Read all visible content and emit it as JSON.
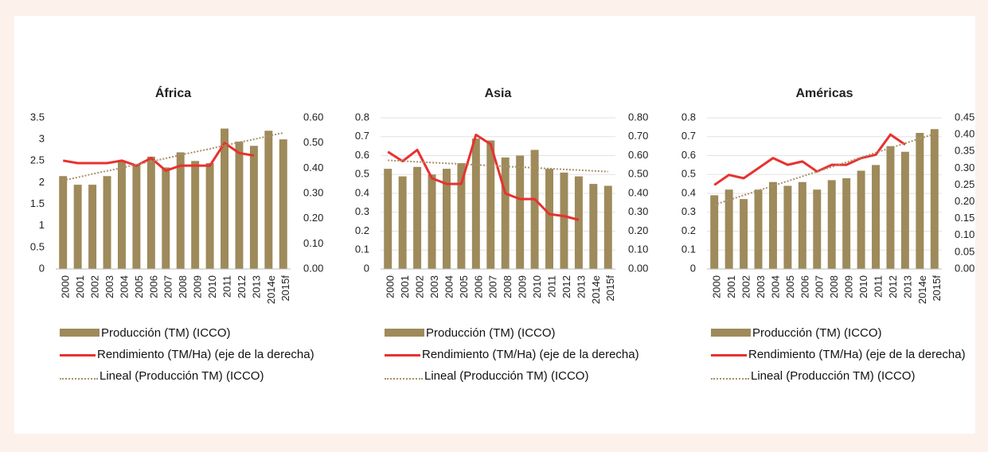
{
  "chart_data": [
    {
      "type": "bar",
      "title": "África",
      "categories": [
        "2000",
        "2001",
        "2002",
        "2003",
        "2004",
        "2005",
        "2006",
        "2007",
        "2008",
        "2009",
        "2010",
        "2011",
        "2012",
        "2013",
        "2014e",
        "2015f"
      ],
      "series": [
        {
          "name": "Producción (TM) (ICCO)",
          "type": "bar",
          "color": "#9e8a5a",
          "values": [
            2.15,
            1.95,
            1.95,
            2.15,
            2.5,
            2.4,
            2.6,
            2.35,
            2.7,
            2.5,
            2.45,
            3.25,
            2.95,
            2.85,
            3.2,
            3.0
          ]
        },
        {
          "name": "Rendimiento (TM/Ha) (eje de la derecha)",
          "type": "line",
          "axis": "y2",
          "color": "#e8312f",
          "values": [
            0.43,
            0.42,
            0.42,
            0.42,
            0.43,
            0.41,
            0.44,
            0.39,
            0.41,
            0.41,
            0.41,
            0.5,
            0.46,
            0.45,
            null,
            null
          ]
        },
        {
          "name": "Lineal (Producción TM) (ICCO)",
          "type": "line",
          "style": "dotted",
          "color": "#a8916a",
          "values": [
            2.05,
            2.12,
            2.2,
            2.27,
            2.34,
            2.42,
            2.49,
            2.56,
            2.64,
            2.71,
            2.78,
            2.86,
            2.93,
            3.0,
            3.08,
            3.15
          ]
        }
      ],
      "ylim": [
        0,
        3.5
      ],
      "yticks": [
        0,
        0.5,
        1,
        1.5,
        2,
        2.5,
        3,
        3.5
      ],
      "y2lim": [
        0,
        0.6
      ],
      "y2ticks": [
        {
          "value": 0,
          "label": "0.00"
        },
        {
          "value": 0.1,
          "label": "0.10"
        },
        {
          "value": 0.2,
          "label": "0.20"
        },
        {
          "value": 0.3,
          "label": "0.30"
        },
        {
          "value": 0.4,
          "label": "0.40"
        },
        {
          "value": 0.5,
          "label": "0.50"
        },
        {
          "value": 0.6,
          "label": "0.60"
        }
      ],
      "grid": false
    },
    {
      "type": "bar",
      "title": "Asia",
      "categories": [
        "2000",
        "2001",
        "2002",
        "2003",
        "2004",
        "2005",
        "2006",
        "2007",
        "2008",
        "2009",
        "2010",
        "2011",
        "2012",
        "2013",
        "2014e",
        "2015f"
      ],
      "series": [
        {
          "name": "Producción (TM) (ICCO)",
          "type": "bar",
          "color": "#9e8a5a",
          "values": [
            0.53,
            0.49,
            0.54,
            0.5,
            0.53,
            0.56,
            0.69,
            0.68,
            0.59,
            0.6,
            0.63,
            0.53,
            0.51,
            0.49,
            0.45,
            0.44
          ]
        },
        {
          "name": "Rendimiento (TM/Ha) (eje de la derecha)",
          "type": "line",
          "axis": "y2",
          "color": "#e8312f",
          "values": [
            0.62,
            0.57,
            0.63,
            0.48,
            0.45,
            0.45,
            0.71,
            0.66,
            0.4,
            0.37,
            0.37,
            0.29,
            0.28,
            0.26,
            null,
            null
          ]
        },
        {
          "name": "Lineal (Producción TM) (ICCO)",
          "type": "line",
          "style": "dotted",
          "color": "#a8916a",
          "values": [
            0.575,
            0.571,
            0.567,
            0.563,
            0.559,
            0.555,
            0.551,
            0.547,
            0.543,
            0.539,
            0.535,
            0.531,
            0.527,
            0.523,
            0.519,
            0.515
          ]
        }
      ],
      "ylim": [
        0,
        0.8
      ],
      "yticks": [
        0,
        0.1,
        0.2,
        0.3,
        0.4,
        0.5,
        0.6,
        0.7,
        0.8
      ],
      "y2lim": [
        0,
        0.8
      ],
      "y2ticks": [
        {
          "value": 0,
          "label": "0.00"
        },
        {
          "value": 0.1,
          "label": "0.10"
        },
        {
          "value": 0.2,
          "label": "0.20"
        },
        {
          "value": 0.3,
          "label": "0.30"
        },
        {
          "value": 0.4,
          "label": "0.40"
        },
        {
          "value": 0.5,
          "label": "0.50"
        },
        {
          "value": 0.6,
          "label": "0.60"
        },
        {
          "value": 0.7,
          "label": "0.70"
        },
        {
          "value": 0.8,
          "label": "0.80"
        }
      ],
      "grid": true
    },
    {
      "type": "bar",
      "title": "Américas",
      "categories": [
        "2000",
        "2001",
        "2002",
        "2003",
        "2004",
        "2005",
        "2006",
        "2007",
        "2008",
        "2009",
        "2010",
        "2011",
        "2012",
        "2013",
        "2014e",
        "2015f"
      ],
      "series": [
        {
          "name": "Producción (TM) (ICCO)",
          "type": "bar",
          "color": "#9e8a5a",
          "values": [
            0.39,
            0.42,
            0.37,
            0.42,
            0.46,
            0.44,
            0.46,
            0.42,
            0.47,
            0.48,
            0.52,
            0.55,
            0.65,
            0.62,
            0.72,
            0.74
          ]
        },
        {
          "name": "Rendimiento (TM/Ha) (eje de la derecha)",
          "type": "line",
          "axis": "y2",
          "color": "#e8312f",
          "values": [
            0.25,
            0.28,
            0.27,
            0.3,
            0.33,
            0.31,
            0.32,
            0.29,
            0.31,
            0.31,
            0.33,
            0.34,
            0.4,
            0.37,
            null,
            null
          ]
        },
        {
          "name": "Lineal (Producción TM) (ICCO)",
          "type": "line",
          "style": "dotted",
          "color": "#a8916a",
          "values": [
            0.34,
            0.365,
            0.39,
            0.415,
            0.44,
            0.465,
            0.49,
            0.515,
            0.54,
            0.565,
            0.59,
            0.615,
            0.64,
            0.665,
            0.69,
            0.715
          ]
        }
      ],
      "ylim": [
        0,
        0.8
      ],
      "yticks": [
        0,
        0.1,
        0.2,
        0.3,
        0.4,
        0.5,
        0.6,
        0.7,
        0.8
      ],
      "y2lim": [
        0,
        0.45
      ],
      "y2ticks": [
        {
          "value": 0,
          "label": "0.00"
        },
        0.05,
        {
          "value": 0.1,
          "label": "0.10"
        },
        0.15,
        {
          "value": 0.2,
          "label": "0.20"
        },
        0.25,
        {
          "value": 0.3,
          "label": "0.30"
        },
        0.35,
        {
          "value": 0.4,
          "label": "0.40"
        },
        0.45
      ],
      "grid": true
    }
  ]
}
